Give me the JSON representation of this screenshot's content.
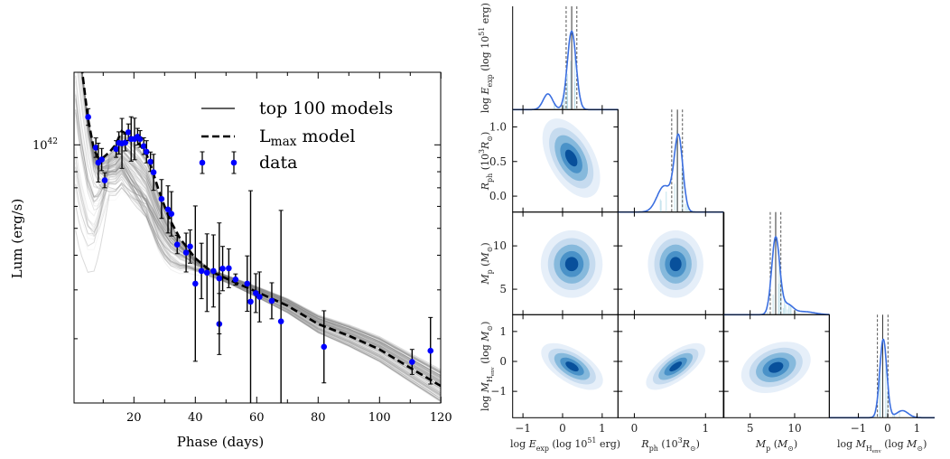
{
  "chart_data": [
    {
      "type": "line",
      "xlabel": "Phase (days)",
      "ylabel": "Lum (erg/s)",
      "xlim": [
        0.5,
        120
      ],
      "ylim": [
        1.17e+41,
        1.83e+42
      ],
      "yscale": "log",
      "grid": false,
      "xticks": [
        20,
        40,
        60,
        80,
        100,
        120
      ],
      "xtick_labels": [
        "20",
        "40",
        "60",
        "80",
        "100",
        "120"
      ],
      "ytick_label": {
        "base": "10",
        "exp": "42",
        "value": 1e+42
      },
      "legend": {
        "placement": "top-right",
        "entries": [
          {
            "label": [
              {
                "t": "top 100 models"
              }
            ],
            "style": "solid"
          },
          {
            "label": [
              {
                "t": "L"
              },
              {
                "t": "max",
                "s": "sub"
              },
              {
                "t": " model"
              }
            ],
            "style": "dashed"
          },
          {
            "label": [
              {
                "t": "data"
              }
            ],
            "style": "points"
          }
        ]
      },
      "colors": {
        "data": "#0000ff",
        "errorbar": "#000000",
        "models": "#808080",
        "lmax": "#000000"
      },
      "data": {
        "phase": [
          5.1,
          7.6,
          8.4,
          9.5,
          10.5,
          14.2,
          15.1,
          16.1,
          17.2,
          18.2,
          19.1,
          20.2,
          21.2,
          22.0,
          23.2,
          24.1,
          25.4,
          26.4,
          29.0,
          31.1,
          32.2,
          34.1,
          37.0,
          38.3,
          40.0,
          42.0,
          43.8,
          45.9,
          47.8,
          47.8,
          48.9,
          50.9,
          53.1,
          56.9,
          58.0,
          59.7,
          60.9,
          64.9,
          67.9,
          81.9,
          110.6,
          116.6
        ],
        "lum": [
          1.26e+42,
          9.77e+41,
          8.63e+41,
          8.85e+41,
          7.45e+41,
          9.66e+41,
          1.016e+42,
          1.012e+42,
          1.019e+42,
          1.11e+42,
          1.05e+42,
          1.05e+42,
          1.07e+42,
          1.05e+42,
          9.89e+41,
          9.44e+41,
          8.69e+41,
          7.96e+41,
          6.38e+41,
          5.85e+41,
          5.64e+41,
          4.37e+41,
          4.09e+41,
          4.3e+41,
          3.16e+41,
          3.51e+41,
          3.46e+41,
          3.51e+41,
          2.26e+41,
          3.3e+41,
          3.58e+41,
          3.59e+41,
          3.27e+41,
          3.16e+41,
          2.72e+41,
          2.92e+41,
          2.83e+41,
          2.74e+41,
          2.31e+41,
          1.87e+41,
          1.65e+41,
          1.81e+41
        ],
        "err_dex": [
          0.03,
          0.035,
          0.07,
          0.04,
          0.027,
          0.03,
          0.04,
          0.09,
          0.03,
          0.03,
          0.08,
          0.075,
          0.03,
          0.03,
          0.03,
          0.04,
          0.035,
          0.065,
          0.07,
          0.085,
          0.08,
          0.033,
          0.07,
          0.06,
          0.28,
          0.1,
          0.14,
          0.13,
          0.11,
          0.2,
          0.08,
          0.07,
          0.02,
          0.1,
          0.4,
          0.07,
          0.09,
          0.065,
          0.4,
          0.13,
          0.045,
          0.12
        ]
      },
      "lmax_model": {
        "phase": [
          2.5,
          3,
          5,
          7,
          8.5,
          10,
          12,
          14,
          16,
          18,
          20,
          22,
          24,
          26,
          28,
          30,
          32,
          35,
          40,
          45,
          50,
          60,
          70,
          80,
          90,
          100,
          110,
          120
        ],
        "lum": [
          2.1e+42,
          1.9e+42,
          1.25e+42,
          9.6e+41,
          8.95e+41,
          9e+41,
          9.4e+41,
          1e+42,
          1.12e+42,
          1.09e+42,
          1.05e+42,
          1e+42,
          9.3e+41,
          8.1e+41,
          6.9e+41,
          6e+41,
          5.3e+41,
          4.6e+41,
          3.9e+41,
          3.5e+41,
          3.3e+41,
          2.95e+41,
          2.63e+41,
          2.26e+41,
          2.05e+41,
          1.83e+41,
          1.57e+41,
          1.35e+41
        ]
      },
      "n_models": 100
    },
    {
      "type": "corner",
      "parameters": [
        {
          "key": "E",
          "label": [
            {
              "t": "log "
            },
            {
              "t": "E",
              "s": "i"
            },
            {
              "t": "exp",
              "s": "sub"
            },
            {
              "t": " (log 10"
            },
            {
              "t": "51",
              "s": "sup"
            },
            {
              "t": " erg)"
            }
          ],
          "range": [
            -1.26,
            1.4
          ],
          "ticks": [
            -1,
            0,
            1
          ],
          "tick_labels": [
            "−1",
            "0",
            "1"
          ],
          "median": 0.23,
          "lo": 0.09,
          "hi": 0.36,
          "kde": [
            {
              "mu": 0.23,
              "sigma": 0.11,
              "w": 1
            },
            {
              "mu": -0.37,
              "sigma": 0.12,
              "w": 0.2
            }
          ]
        },
        {
          "key": "Rph",
          "label": [
            {
              "t": "R",
              "s": "i"
            },
            {
              "t": "ph",
              "s": "sub"
            },
            {
              "t": " (10"
            },
            {
              "t": "3",
              "s": "sup"
            },
            {
              "t": "R",
              "s": "i"
            },
            {
              "t": "⊙",
              "s": "sub"
            },
            {
              "t": ")"
            }
          ],
          "range": [
            -0.23,
            1.25
          ],
          "ticks": [
            0,
            1
          ],
          "tick_labels": [
            "0",
            "1"
          ],
          "yticks": [
            0.0,
            0.5,
            1.0
          ],
          "ytick_labels": [
            "0.0",
            "0.5",
            "1.0"
          ],
          "median": 0.605,
          "lo": 0.525,
          "hi": 0.676,
          "kde": [
            {
              "mu": 0.62,
              "sigma": 0.06,
              "w": 1
            },
            {
              "mu": 0.42,
              "sigma": 0.1,
              "w": 0.35
            }
          ]
        },
        {
          "key": "Mp",
          "label": [
            {
              "t": "M",
              "s": "i"
            },
            {
              "t": "p",
              "s": "sub"
            },
            {
              "t": " ("
            },
            {
              "t": "M",
              "s": "i"
            },
            {
              "t": "⊙",
              "s": "sub"
            },
            {
              "t": ")"
            }
          ],
          "range": [
            2.06,
            13.9
          ],
          "ticks": [
            5,
            10
          ],
          "tick_labels": [
            "5",
            "10"
          ],
          "median": 7.87,
          "lo": 7.26,
          "hi": 8.45,
          "kde": [
            {
              "mu": 7.87,
              "sigma": 0.45,
              "w": 1
            },
            {
              "mu": 9.2,
              "sigma": 0.6,
              "w": 0.12
            },
            {
              "mu": 11,
              "sigma": 1.2,
              "w": 0.04
            }
          ]
        },
        {
          "key": "MH",
          "label": [
            {
              "t": "log "
            },
            {
              "t": "M",
              "s": "i"
            },
            {
              "t": "H",
              "s": "sub"
            },
            {
              "t": "env",
              "s": "sub2"
            },
            {
              "t": " (log "
            },
            {
              "t": "M",
              "s": "i"
            },
            {
              "t": "⊙",
              "s": "sub"
            },
            {
              "t": ")"
            }
          ],
          "range": [
            -1.99,
            1.6
          ],
          "yrange": [
            -1.88,
            1.56
          ],
          "ticks": [
            -1,
            0,
            1
          ],
          "tick_labels": [
            "−1",
            "0",
            "1"
          ],
          "median": -0.17,
          "lo": -0.35,
          "hi": 0.01,
          "kde": [
            {
              "mu": -0.15,
              "sigma": 0.12,
              "w": 1
            },
            {
              "mu": 0.5,
              "sigma": 0.2,
              "w": 0.09
            }
          ]
        }
      ],
      "row_ylabel_top": [
        {
          "t": "log "
        },
        {
          "t": "E",
          "s": "i"
        },
        {
          "t": "exp",
          "s": "sub"
        },
        {
          "t": " (log 10"
        },
        {
          "t": "51",
          "s": "sup"
        },
        {
          "t": " erg)"
        }
      ],
      "kde_2d": [
        {
          "x": "E",
          "y": "Rph",
          "center": [
            0.22,
            0.55
          ],
          "sx": 0.28,
          "sy": 0.22,
          "rho": -0.5
        },
        {
          "x": "E",
          "y": "Mp",
          "center": [
            0.23,
            7.9
          ],
          "sx": 0.3,
          "sy": 1.5,
          "rho": 0.0
        },
        {
          "x": "Rph",
          "y": "Mp",
          "center": [
            0.58,
            7.9
          ],
          "sx": 0.15,
          "sy": 1.5,
          "rho": 0.0
        },
        {
          "x": "E",
          "y": "MH",
          "center": [
            0.24,
            -0.17
          ],
          "sx": 0.3,
          "sy": 0.3,
          "rho": -0.6
        },
        {
          "x": "Rph",
          "y": "MH",
          "center": [
            0.58,
            -0.17
          ],
          "sx": 0.16,
          "sy": 0.3,
          "rho": 0.7
        },
        {
          "x": "Mp",
          "y": "MH",
          "center": [
            7.9,
            -0.2
          ],
          "sx": 1.5,
          "sy": 0.33,
          "rho": 0.3
        }
      ],
      "colors": {
        "kde_line": "#3b6fe0",
        "levels": [
          "#e6eff9",
          "#c6dbef",
          "#86b9dc",
          "#4a92c8",
          "#08509b"
        ],
        "median_line": "#333333",
        "interval_line": "#555555"
      }
    }
  ]
}
